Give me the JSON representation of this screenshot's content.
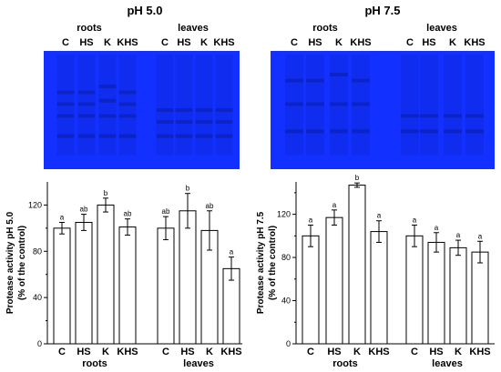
{
  "panels": [
    {
      "ph_label": "pH 5.0",
      "groups": [
        {
          "label": "roots",
          "lanes": [
            "C",
            "HS",
            "K",
            "KHS"
          ]
        },
        {
          "label": "leaves",
          "lanes": [
            "C",
            "HS",
            "K",
            "KHS"
          ]
        }
      ],
      "gel": {
        "background": "#1230ff",
        "band_color": "#0a1ea8",
        "lanes": [
          {
            "group": "roots",
            "lane": "C",
            "bands": [
              0.35,
              0.45,
              0.55,
              0.72
            ]
          },
          {
            "group": "roots",
            "lane": "HS",
            "bands": [
              0.35,
              0.45,
              0.55,
              0.72
            ]
          },
          {
            "group": "roots",
            "lane": "K",
            "bands": [
              0.3,
              0.42,
              0.55,
              0.72
            ]
          },
          {
            "group": "roots",
            "lane": "KHS",
            "bands": [
              0.35,
              0.45,
              0.55,
              0.72
            ]
          },
          {
            "group": "leaves",
            "lane": "C",
            "bands": [
              0.5,
              0.6,
              0.72
            ]
          },
          {
            "group": "leaves",
            "lane": "HS",
            "bands": [
              0.5,
              0.6,
              0.72
            ]
          },
          {
            "group": "leaves",
            "lane": "K",
            "bands": [
              0.5,
              0.6,
              0.72
            ]
          },
          {
            "group": "leaves",
            "lane": "KHS",
            "bands": [
              0.5,
              0.6,
              0.72
            ]
          }
        ]
      }
    },
    {
      "ph_label": "pH 7.5",
      "groups": [
        {
          "label": "roots",
          "lanes": [
            "C",
            "HS",
            "K",
            "KHS"
          ]
        },
        {
          "label": "leaves",
          "lanes": [
            "C",
            "HS",
            "K",
            "KHS"
          ]
        }
      ],
      "gel": {
        "background": "#1230ff",
        "band_color": "#0a1ea8",
        "lanes": [
          {
            "group": "roots",
            "lane": "C",
            "bands": [
              0.25,
              0.45,
              0.68
            ]
          },
          {
            "group": "roots",
            "lane": "HS",
            "bands": [
              0.25,
              0.45,
              0.68
            ]
          },
          {
            "group": "roots",
            "lane": "K",
            "bands": [
              0.2,
              0.45,
              0.68
            ]
          },
          {
            "group": "roots",
            "lane": "KHS",
            "bands": [
              0.25,
              0.45,
              0.68
            ]
          },
          {
            "group": "leaves",
            "lane": "C",
            "bands": [
              0.55,
              0.68
            ]
          },
          {
            "group": "leaves",
            "lane": "HS",
            "bands": [
              0.55,
              0.68
            ]
          },
          {
            "group": "leaves",
            "lane": "K",
            "bands": [
              0.55,
              0.68
            ]
          },
          {
            "group": "leaves",
            "lane": "KHS",
            "bands": [
              0.55,
              0.68
            ]
          }
        ]
      }
    }
  ],
  "chart_data": [
    {
      "type": "bar",
      "ylabel_line1": "Protease activity pH 5.0",
      "ylabel_line2": "(% of the control)",
      "ylim": [
        0,
        140
      ],
      "yticks": [
        0,
        40,
        80,
        120
      ],
      "groups": [
        {
          "label": "roots",
          "categories": [
            "C",
            "HS",
            "K",
            "KHS"
          ],
          "values": [
            100,
            105,
            120,
            101
          ],
          "errors": [
            5,
            7,
            6,
            7
          ],
          "letters": [
            "a",
            "ab",
            "b",
            "ab"
          ]
        },
        {
          "label": "leaves",
          "categories": [
            "C",
            "HS",
            "K",
            "KHS"
          ],
          "values": [
            100,
            115,
            98,
            65
          ],
          "errors": [
            10,
            15,
            17,
            10
          ],
          "letters": [
            "ab",
            "b",
            "ab",
            "a"
          ]
        }
      ]
    },
    {
      "type": "bar",
      "ylabel_line1": "Protease activity pH 7.5",
      "ylabel_line2": "(% of the control)",
      "ylim": [
        0,
        150
      ],
      "yticks": [
        0,
        40,
        80,
        120
      ],
      "groups": [
        {
          "label": "roots",
          "categories": [
            "C",
            "HS",
            "K",
            "KHS"
          ],
          "values": [
            100,
            117,
            147,
            104
          ],
          "errors": [
            10,
            7,
            2,
            10
          ],
          "letters": [
            "a",
            "a",
            "b",
            "a"
          ]
        },
        {
          "label": "leaves",
          "categories": [
            "C",
            "HS",
            "K",
            "KHS"
          ],
          "values": [
            100,
            94,
            89,
            85
          ],
          "errors": [
            10,
            9,
            7,
            10
          ],
          "letters": [
            "a",
            "a",
            "a",
            "a"
          ]
        }
      ]
    }
  ]
}
